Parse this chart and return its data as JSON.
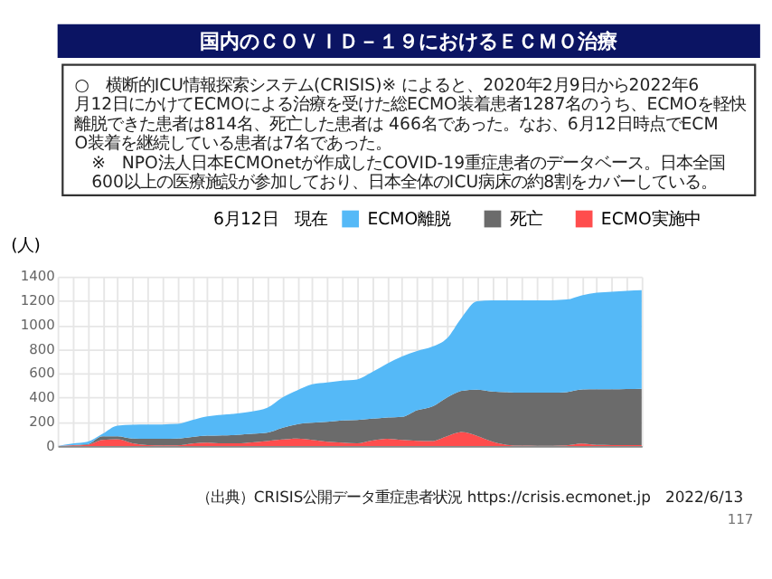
{
  "chart_data": {
    "type": "area",
    "stacked": true,
    "title": "国内のＣＯＶＩＤ－１９におけるＥＣＭＯ治療",
    "ylabel": "(人)",
    "legend_title": "6月12日　現在",
    "legend": "top",
    "grid": true,
    "ylim": [
      0,
      1400
    ],
    "yticks": [
      0,
      200,
      400,
      600,
      800,
      1000,
      1200,
      1400
    ],
    "categories": [
      null,
      null,
      null,
      null,
      null,
      null,
      null,
      null,
      null,
      null,
      null,
      null,
      null,
      null,
      null,
      null,
      null,
      null,
      null,
      null,
      null,
      null,
      null,
      null,
      null,
      null,
      null,
      null,
      null,
      null,
      null,
      null,
      null,
      null,
      null,
      null,
      null,
      null,
      null,
      null
    ],
    "series": [
      {
        "name": "ECMO実施中",
        "color": "#ff4d4d",
        "values": [
          0,
          5,
          10,
          50,
          55,
          22,
          8,
          5,
          5,
          20,
          28,
          22,
          22,
          30,
          40,
          53,
          62,
          50,
          35,
          28,
          22,
          45,
          60,
          50,
          42,
          40,
          80,
          115,
          84,
          37,
          10,
          3,
          2,
          2,
          5,
          20,
          9,
          8,
          7,
          7
        ]
      },
      {
        "name": "死亡",
        "color": "#6b6b6b",
        "values": [
          0,
          3,
          5,
          30,
          25,
          40,
          52,
          55,
          57,
          55,
          57,
          66,
          70,
          70,
          70,
          97,
          118,
          142,
          165,
          182,
          193,
          180,
          175,
          190,
          253,
          285,
          320,
          340,
          381,
          413,
          435,
          437,
          438,
          438,
          440,
          447,
          459,
          460,
          463,
          466
        ]
      },
      {
        "name": "ECMO離脱",
        "color": "#55b9f7",
        "values": [
          0,
          12,
          20,
          20,
          88,
          113,
          117,
          118,
          120,
          140,
          160,
          170,
          176,
          185,
          205,
          250,
          280,
          318,
          325,
          330,
          335,
          385,
          445,
          500,
          490,
          495,
          490,
          609,
          730,
          754,
          759,
          764,
          764,
          764,
          765,
          778,
          798,
          807,
          812,
          814
        ]
      }
    ],
    "annotations": [
      "○　横断的ICU情報探索システム(CRISIS)※ によると、2020年2月9日から2022年6月12日にかけてECMOによる治療を受けた総ECMO装着患者1287名のうち、ECMOを軽快離脱できた患者は814名、死亡した患者は 466名であった。なお、6月12日時点でECMO装着を継続している患者は7名であった。",
      "※　NPO法人日本ECMOnetが作成したCOVID-19重症患者のデータベース。日本全国600以上の医療施設が参加しており、日本全体のICU病床の約8割をカバーしている。",
      "（出典）CRISIS公開データ重症患者状況 https://crisis.ecmonet.jp　2022/6/13",
      "117"
    ]
  }
}
